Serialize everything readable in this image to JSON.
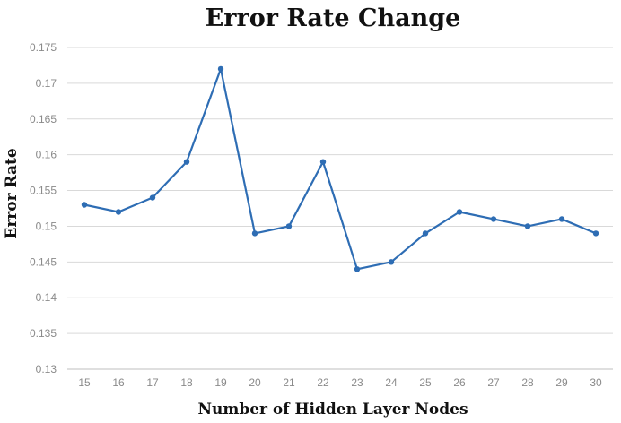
{
  "chart_data": {
    "type": "line",
    "title": "Error Rate Change",
    "xlabel": "Number of Hidden Layer Nodes",
    "ylabel": "Error Rate",
    "categories": [
      "15",
      "16",
      "17",
      "18",
      "19",
      "20",
      "21",
      "22",
      "23",
      "24",
      "25",
      "26",
      "27",
      "28",
      "29",
      "30"
    ],
    "series": [
      {
        "values": [
          0.153,
          0.152,
          0.154,
          0.159,
          0.172,
          0.149,
          0.15,
          0.159,
          0.144,
          0.145,
          0.149,
          0.152,
          0.151,
          0.15,
          0.151,
          0.149
        ]
      }
    ],
    "ylim": [
      0.13,
      0.175
    ],
    "yticks": [
      "0.13",
      "0.135",
      "0.14",
      "0.145",
      "0.15",
      "0.155",
      "0.16",
      "0.165",
      "0.17",
      "0.175"
    ],
    "grid": true,
    "legend": "none",
    "colors": {
      "line": "#2e6db4"
    }
  }
}
